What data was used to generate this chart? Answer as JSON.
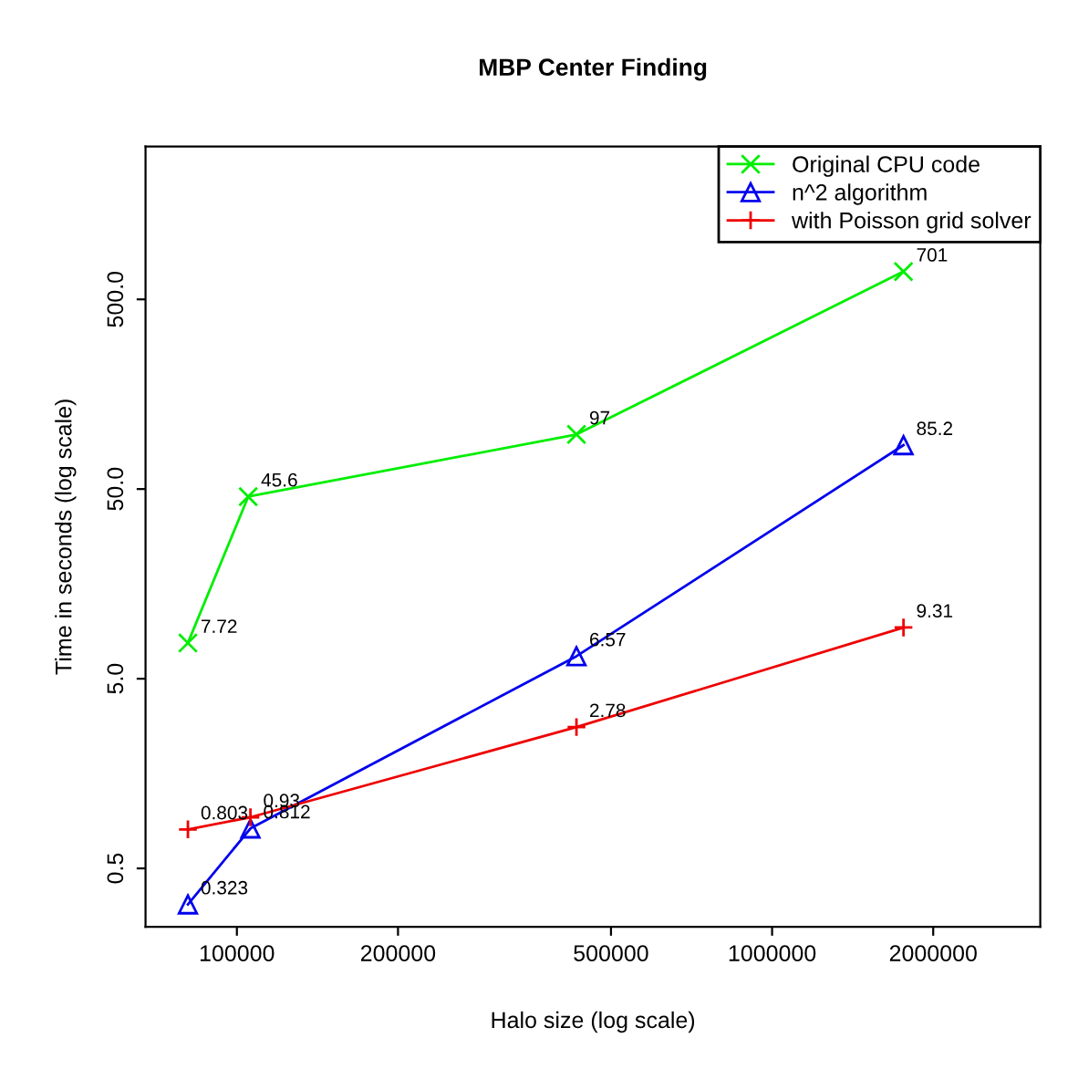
{
  "chart_data": {
    "type": "line",
    "title": "MBP Center Finding",
    "xlabel": "Halo size (log scale)",
    "ylabel": "Time in seconds (log scale)",
    "log": "xy",
    "xlim": [
      67500,
      3170000
    ],
    "ylim": [
      0.246,
      3200
    ],
    "xticks": [
      100000,
      200000,
      500000,
      1000000,
      2000000
    ],
    "yticks": [
      {
        "value": 0.5,
        "label": "0.5"
      },
      {
        "value": 5,
        "label": "5.0"
      },
      {
        "value": 50,
        "label": "50.0"
      },
      {
        "value": 500,
        "label": "500.0"
      }
    ],
    "grid": false,
    "legend": "top right",
    "data_labels": true,
    "line_style": "solid",
    "series": [
      {
        "name": "Original CPU code",
        "color": "#00ee00",
        "marker": "cross",
        "x": [
          81000,
          105000,
          431000,
          1760000
        ],
        "values": [
          7.72,
          45.6,
          97,
          701
        ]
      },
      {
        "name": "n^2 algorithm",
        "color": "#0000ee",
        "marker": "triangle",
        "x": [
          81000,
          106000,
          431000,
          1760000
        ],
        "values": [
          0.323,
          0.812,
          6.57,
          85.2
        ]
      },
      {
        "name": "with Poisson grid solver",
        "color": "#ee0000",
        "marker": "plus",
        "x": [
          81000,
          106000,
          431000,
          1760000
        ],
        "values": [
          0.803,
          0.93,
          2.78,
          9.31
        ]
      }
    ]
  }
}
